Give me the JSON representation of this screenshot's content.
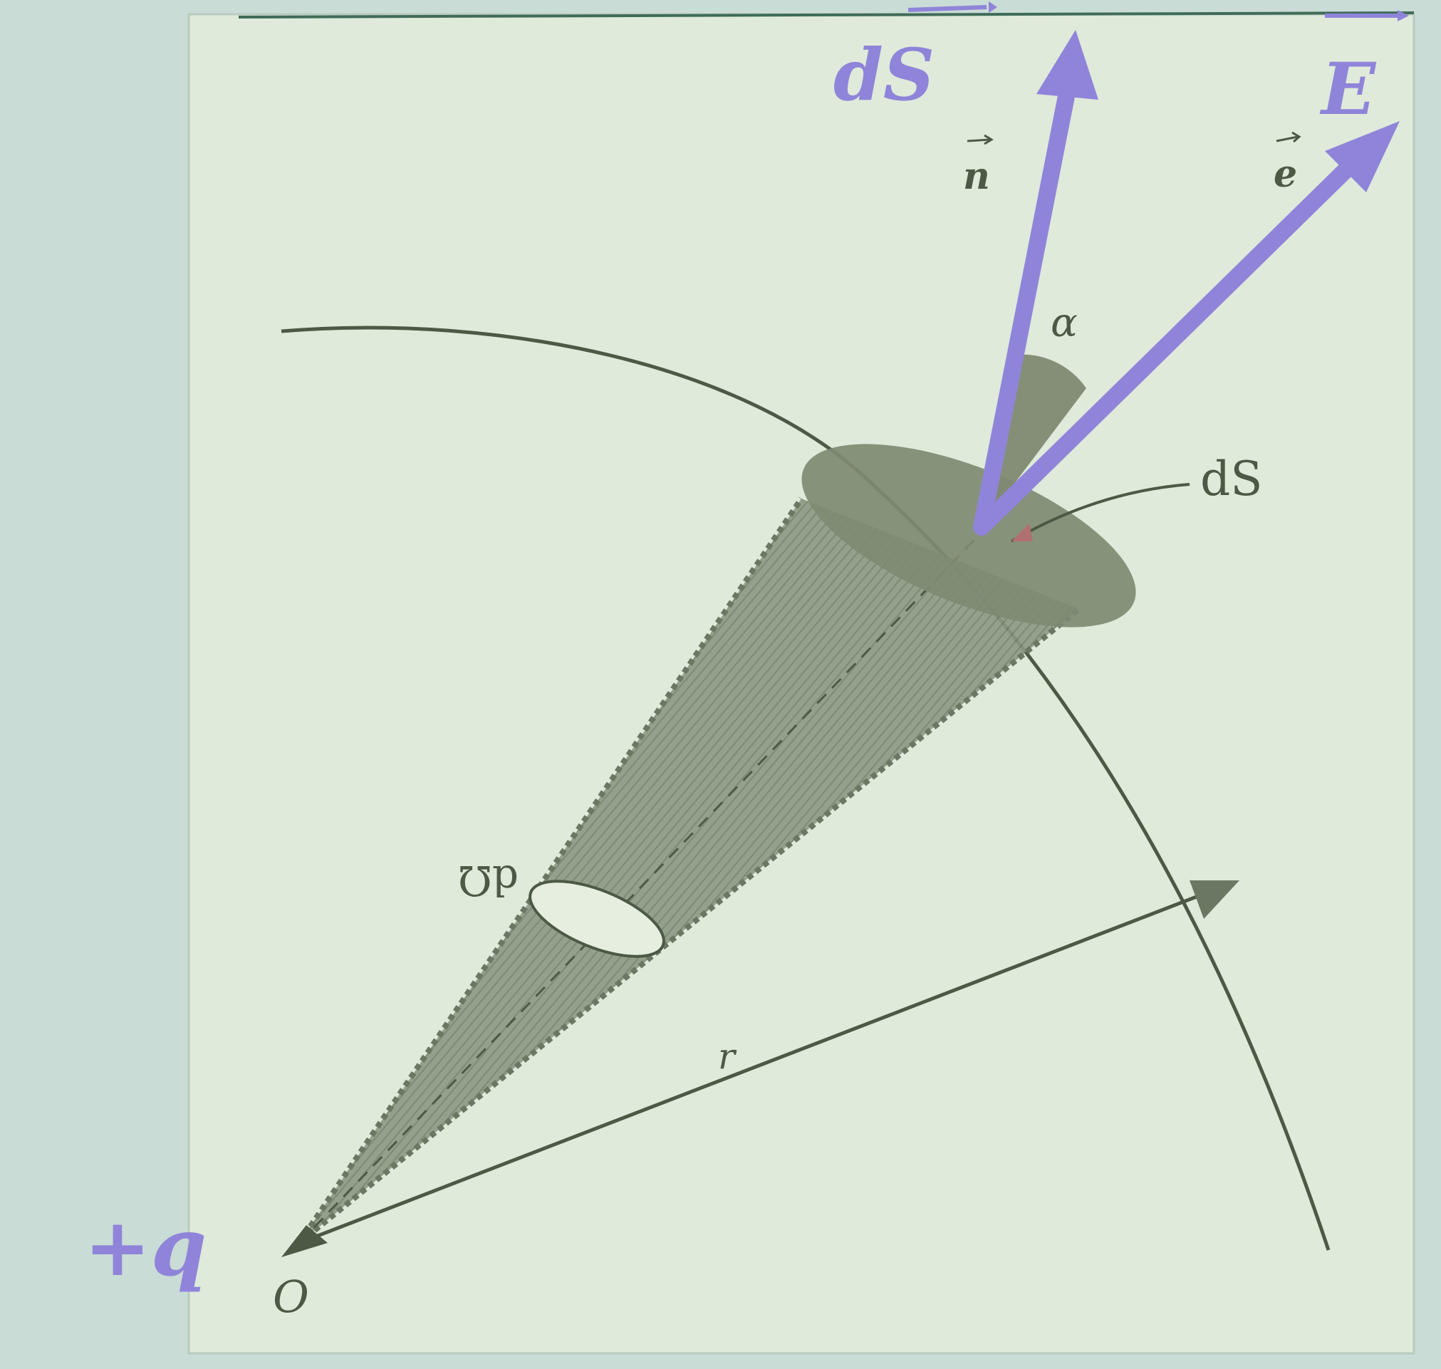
{
  "labels": {
    "dS_vector": "dS",
    "E_vector": "E",
    "n_unit": "n",
    "e_unit": "e",
    "alpha": "α",
    "dS_area": "dS",
    "d_omega": "dΩ",
    "r": "r",
    "charge": "+q",
    "origin": "O"
  },
  "colors": {
    "background": "#c9dcd6",
    "paper": "#dfeadb",
    "vector": "#8f84d9",
    "line": "#4c5a45",
    "cone": "#8c9883",
    "area": "#7f8a73"
  }
}
